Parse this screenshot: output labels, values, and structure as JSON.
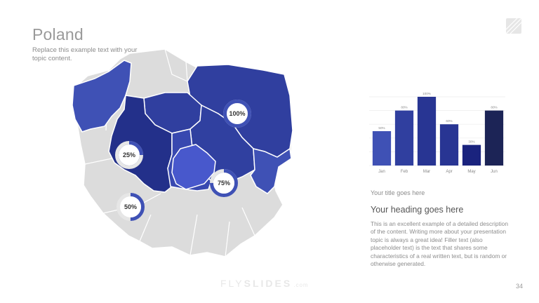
{
  "slide": {
    "title": "Poland",
    "subtitle": "Replace this example text with your topic content.",
    "page_number": "34"
  },
  "brand": {
    "part1": "FLY",
    "part2": "SLIDES",
    "suffix": ".com"
  },
  "map": {
    "badges": [
      {
        "label": "100%",
        "value": 100
      },
      {
        "label": "25%",
        "value": 25
      },
      {
        "label": "75%",
        "value": 75
      },
      {
        "label": "50%",
        "value": 50
      }
    ]
  },
  "colors": {
    "accent": "#3f51b5",
    "track": "#e6e6e6",
    "gray_region": "#dcdcdc"
  },
  "chart_data": {
    "type": "bar",
    "categories": [
      "Jan",
      "Feb",
      "Mar",
      "Apr",
      "May",
      "Jun"
    ],
    "values": [
      50,
      80,
      100,
      60,
      30,
      80
    ],
    "value_labels": [
      "50%",
      "80%",
      "100%",
      "60%",
      "30%",
      "80%"
    ],
    "colors": [
      "#3f51b5",
      "#303f9f",
      "#283593",
      "#283593",
      "#1a237e",
      "#1c2456"
    ],
    "ylim": [
      0,
      100
    ],
    "grid": true,
    "title": "",
    "xlabel": "",
    "ylabel": ""
  },
  "content": {
    "chart_caption": "Your title goes here",
    "heading": "Your heading goes here",
    "body": "This is an excellent example of a detailed description of the content. Writing more about your presentation topic is always a great idea! Filler text (also placeholder text) is the text that shares some characteristics of a real written text, but is random or otherwise generated."
  }
}
